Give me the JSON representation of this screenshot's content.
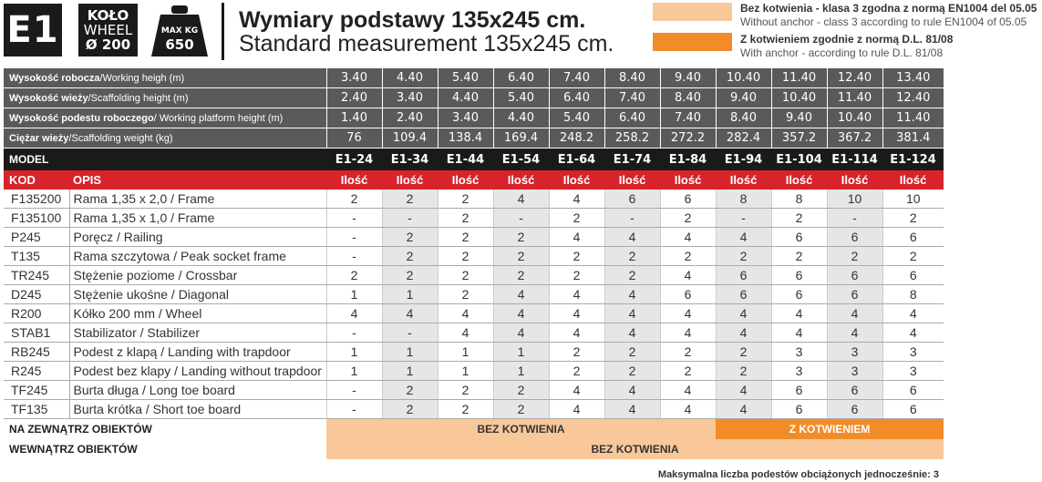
{
  "header": {
    "badge": "E1",
    "wheel_l1": "KOŁO",
    "wheel_l2": "WHEEL",
    "wheel_l3": "Ø 200",
    "weight_l1": "MAX KG",
    "weight_l2": "650",
    "title_pl": "Wymiary podstawy 135x245 cm.",
    "title_en": "Standard measurement 135x245 cm."
  },
  "legend": {
    "item1_bold": "Bez kotwienia - klasa 3 zgodna z normą EN1004 del 05.05",
    "item1_sub": "Without anchor - class 3 according to rule EN1004 of 05.05",
    "item2_bold": "Z kotwieniem zgodnie z normą D.L. 81/08",
    "item2_sub": "With anchor - according to rule D.L. 81/08",
    "color_light": "#f9c89a",
    "color_dark": "#f28c28"
  },
  "specs": [
    {
      "label_pl": "Wysokość robocza",
      "label_en": "/Working heigh (m)",
      "values": [
        "3.40",
        "4.40",
        "5.40",
        "6.40",
        "7.40",
        "8.40",
        "9.40",
        "10.40",
        "11.40",
        "12.40",
        "13.40"
      ]
    },
    {
      "label_pl": "Wysokość wieży",
      "label_en": "/Scaffolding height (m)",
      "values": [
        "2.40",
        "3.40",
        "4.40",
        "5.40",
        "6.40",
        "7.40",
        "8.40",
        "9.40",
        "10.40",
        "11.40",
        "12.40"
      ]
    },
    {
      "label_pl": "Wysokość podestu roboczego",
      "label_en": "/ Working platform height (m)",
      "values": [
        "1.40",
        "2.40",
        "3.40",
        "4.40",
        "5.40",
        "6.40",
        "7.40",
        "8.40",
        "9.40",
        "10.40",
        "11.40"
      ]
    },
    {
      "label_pl": "Ciężar wieży",
      "label_en": "/Scaffolding weight (kg)",
      "values": [
        "76",
        "109.4",
        "138.4",
        "169.4",
        "248.2",
        "258.2",
        "272.2",
        "282.4",
        "357.2",
        "367.2",
        "381.4"
      ]
    }
  ],
  "model": {
    "label": "MODEL",
    "values": [
      "E1-24",
      "E1-34",
      "E1-44",
      "E1-54",
      "E1-64",
      "E1-74",
      "E1-84",
      "E1-94",
      "E1-104",
      "E1-114",
      "E1-124"
    ]
  },
  "columns": {
    "kod": "KOD",
    "opis": "OPIS",
    "qty": "Ilość"
  },
  "items": [
    {
      "kod": "F135200",
      "pl": "Rama 1,35 x 2,0",
      "en": " / Frame",
      "q": [
        "2",
        "2",
        "2",
        "4",
        "4",
        "6",
        "6",
        "8",
        "8",
        "10",
        "10"
      ]
    },
    {
      "kod": "F135100",
      "pl": "Rama 1,35 x 1,0",
      "en": " / Frame",
      "q": [
        "-",
        "-",
        "2",
        "-",
        "2",
        "-",
        "2",
        "-",
        "2",
        "-",
        "2"
      ]
    },
    {
      "kod": "P245",
      "pl": "Poręcz",
      "en": " / Railing",
      "q": [
        "-",
        "2",
        "2",
        "2",
        "4",
        "4",
        "4",
        "4",
        "6",
        "6",
        "6"
      ]
    },
    {
      "kod": "T135",
      "pl": "Rama szczytowa",
      "en": " / Peak socket frame",
      "q": [
        "-",
        "2",
        "2",
        "2",
        "2",
        "2",
        "2",
        "2",
        "2",
        "2",
        "2"
      ]
    },
    {
      "kod": "TR245",
      "pl": "Stężenie poziome",
      "en": " / Crossbar",
      "q": [
        "2",
        "2",
        "2",
        "2",
        "2",
        "2",
        "4",
        "6",
        "6",
        "6",
        "6"
      ]
    },
    {
      "kod": "D245",
      "pl": "Stężenie ukośne",
      "en": " / Diagonal",
      "q": [
        "1",
        "1",
        "2",
        "4",
        "4",
        "4",
        "6",
        "6",
        "6",
        "6",
        "8"
      ]
    },
    {
      "kod": "R200",
      "pl": "Kółko 200 mm",
      "en": " / Wheel",
      "q": [
        "4",
        "4",
        "4",
        "4",
        "4",
        "4",
        "4",
        "4",
        "4",
        "4",
        "4"
      ]
    },
    {
      "kod": "STAB1",
      "pl": "Stabilizator",
      "en": " / Stabilizer",
      "q": [
        "-",
        "-",
        "4",
        "4",
        "4",
        "4",
        "4",
        "4",
        "4",
        "4",
        "4"
      ]
    },
    {
      "kod": "RB245",
      "pl": "Podest z klapą",
      "en": " / Landing with trapdoor",
      "q": [
        "1",
        "1",
        "1",
        "1",
        "2",
        "2",
        "2",
        "2",
        "3",
        "3",
        "3"
      ]
    },
    {
      "kod": "R245",
      "pl": "Podest bez klapy",
      "en": " / Landing without trapdoor",
      "q": [
        "1",
        "1",
        "1",
        "1",
        "2",
        "2",
        "2",
        "2",
        "3",
        "3",
        "3"
      ]
    },
    {
      "kod": "TF245",
      "pl": "Burta długa",
      "en": " / Long toe board",
      "q": [
        "-",
        "2",
        "2",
        "2",
        "4",
        "4",
        "4",
        "4",
        "6",
        "6",
        "6"
      ]
    },
    {
      "kod": "TF135",
      "pl": "Burta krótka",
      "en": " / Short toe board",
      "q": [
        "-",
        "2",
        "2",
        "2",
        "4",
        "4",
        "4",
        "4",
        "6",
        "6",
        "6"
      ]
    }
  ],
  "footer": {
    "outside_label": "NA ZEWNĄTRZ OBIEKTÓW",
    "outside_bez": "BEZ KOTWIENIA",
    "outside_z": "Z KOTWIENIEM",
    "inside_label": "WEWNĄTRZ OBIEKTÓW",
    "inside_bez": "BEZ KOTWIENIA",
    "note": "Maksymalna liczba podestów obciążonych jednocześnie: 3"
  }
}
